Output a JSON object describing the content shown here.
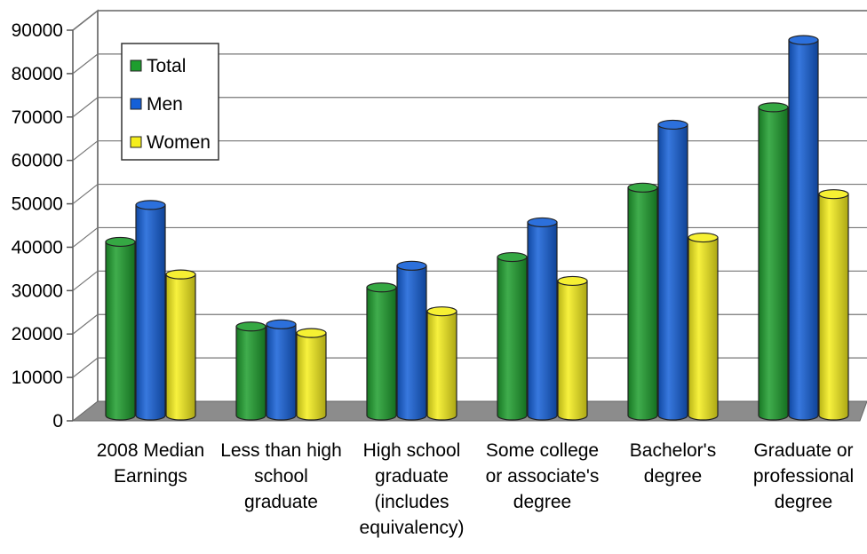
{
  "chart_data": {
    "type": "bar",
    "categories": [
      [
        "2008 Median",
        "Earnings"
      ],
      [
        "Less than high",
        "school",
        "graduate"
      ],
      [
        "High school",
        "graduate",
        "(includes",
        "equivalency)"
      ],
      [
        "Some college",
        "or associate's",
        "degree"
      ],
      [
        "Bachelor's",
        "degree"
      ],
      [
        "Graduate or",
        "professional",
        "degree"
      ]
    ],
    "series": [
      {
        "name": "Total",
        "color": "#1e9e2e",
        "values": [
          40000,
          20500,
          29500,
          36500,
          52500,
          71000
        ]
      },
      {
        "name": "Men",
        "color": "#1560d8",
        "values": [
          48500,
          21000,
          34500,
          44500,
          67000,
          86500
        ]
      },
      {
        "name": "Women",
        "color": "#f5ee1c",
        "values": [
          32500,
          19000,
          24000,
          31000,
          41000,
          51000
        ]
      }
    ],
    "yticks": [
      "0",
      "10000",
      "20000",
      "30000",
      "40000",
      "50000",
      "60000",
      "70000",
      "80000",
      "90000"
    ],
    "ylim": [
      0,
      90000
    ],
    "legend_position": "top-left",
    "grid": true,
    "title": "",
    "xlabel": "",
    "ylabel": ""
  }
}
